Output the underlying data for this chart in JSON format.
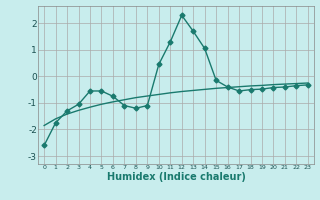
{
  "xlabel": "Humidex (Indice chaleur)",
  "x_values": [
    0,
    1,
    2,
    3,
    4,
    5,
    6,
    7,
    8,
    9,
    10,
    11,
    12,
    13,
    14,
    15,
    16,
    17,
    18,
    19,
    20,
    21,
    22,
    23
  ],
  "line1_y": [
    -2.6,
    -1.75,
    -1.3,
    -1.05,
    -0.55,
    -0.55,
    -0.75,
    -1.1,
    -1.2,
    -1.1,
    0.45,
    1.3,
    2.3,
    1.7,
    1.05,
    -0.15,
    -0.4,
    -0.55,
    -0.5,
    -0.48,
    -0.42,
    -0.4,
    -0.35,
    -0.32
  ],
  "regression_y": [
    -1.85,
    -1.6,
    -1.42,
    -1.28,
    -1.16,
    -1.05,
    -0.96,
    -0.88,
    -0.8,
    -0.74,
    -0.68,
    -0.62,
    -0.57,
    -0.53,
    -0.49,
    -0.45,
    -0.42,
    -0.39,
    -0.36,
    -0.34,
    -0.31,
    -0.29,
    -0.27,
    -0.25
  ],
  "line_color": "#1a7a6e",
  "bg_color": "#c8eded",
  "grid_color": "#aaaaaa",
  "ylim": [
    -3.3,
    2.65
  ],
  "yticks": [
    -3,
    -2,
    -1,
    0,
    1,
    2
  ],
  "xticks": [
    0,
    1,
    2,
    3,
    4,
    5,
    6,
    7,
    8,
    9,
    10,
    11,
    12,
    13,
    14,
    15,
    16,
    17,
    18,
    19,
    20,
    21,
    22,
    23
  ],
  "marker": "D",
  "marker_size": 2.5,
  "linewidth": 1.0
}
